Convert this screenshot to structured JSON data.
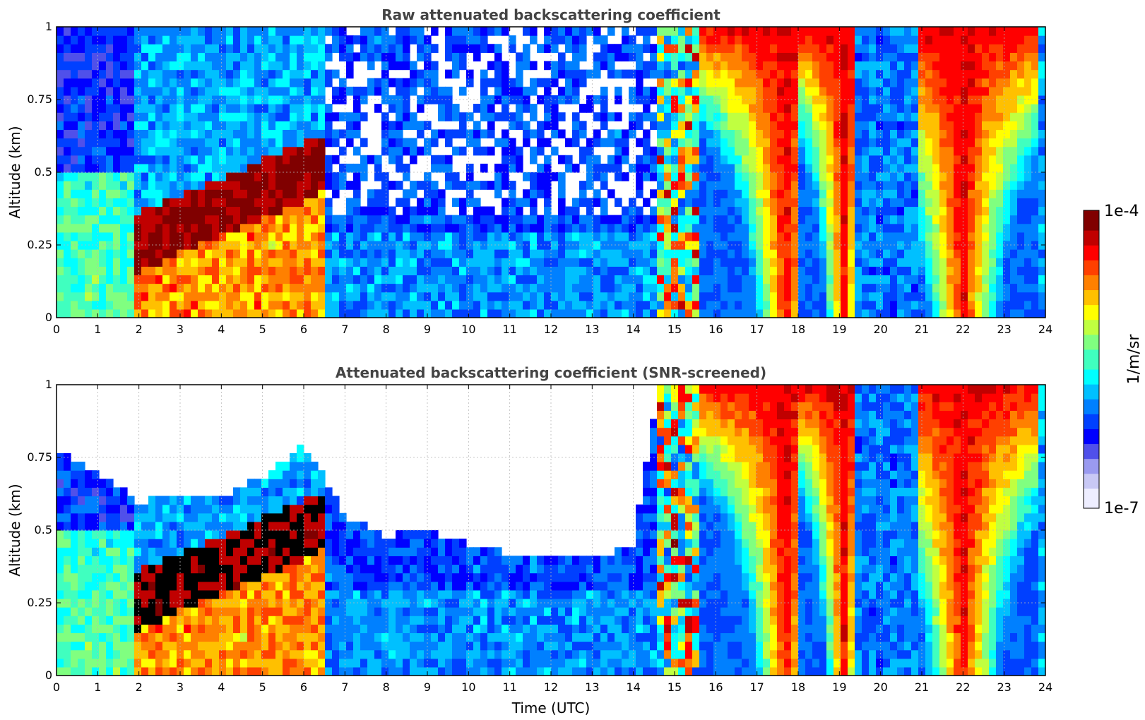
{
  "chart_data": [
    {
      "type": "heatmap",
      "title": "Raw attenuated backscattering coefficient",
      "xlabel": "",
      "ylabel": "Altitude (km)",
      "xlim": [
        0,
        24
      ],
      "ylim": [
        0,
        1
      ],
      "xticks": [
        "0",
        "1",
        "2",
        "3",
        "4",
        "5",
        "6",
        "7",
        "8",
        "9",
        "10",
        "11",
        "12",
        "13",
        "14",
        "15",
        "16",
        "17",
        "18",
        "19",
        "20",
        "21",
        "22",
        "23",
        "24"
      ],
      "yticks": [
        "0",
        "0.25",
        "0.5",
        "0.75",
        "1"
      ],
      "grid": true,
      "colormap": "jet",
      "color_scale": "log",
      "value_range": [
        1e-07,
        0.0001
      ],
      "features": [
        {
          "time": [
            0,
            1.8
          ],
          "top_km": 0.5,
          "intensity": 0.35
        },
        {
          "time": [
            1.8,
            6.6
          ],
          "top_km": 0.5,
          "intensity": 0.75
        },
        {
          "time": [
            15.6,
            18.0
          ],
          "top_km": 1.0,
          "intensity": 0.8
        },
        {
          "time": [
            18.0,
            19.4
          ],
          "top_km": 1.0,
          "intensity": 0.8
        },
        {
          "time": [
            21.0,
            23.8
          ],
          "top_km": 1.0,
          "intensity": 0.8
        }
      ]
    },
    {
      "type": "heatmap",
      "title": "Attenuated backscattering coefficient (SNR-screened)",
      "xlabel": "Time (UTC)",
      "ylabel": "Altitude (km)",
      "xlim": [
        0,
        24
      ],
      "ylim": [
        0,
        1
      ],
      "xticks": [
        "0",
        "1",
        "2",
        "3",
        "4",
        "5",
        "6",
        "7",
        "8",
        "9",
        "10",
        "11",
        "12",
        "13",
        "14",
        "15",
        "16",
        "17",
        "18",
        "19",
        "20",
        "21",
        "22",
        "23",
        "24"
      ],
      "yticks": [
        "0",
        "0.25",
        "0.5",
        "0.75",
        "1"
      ],
      "grid": true,
      "colormap": "jet",
      "color_scale": "log",
      "value_range": [
        1e-07,
        0.0001
      ],
      "screened_top_km": [
        [
          0,
          0.78
        ],
        [
          1,
          0.7
        ],
        [
          2,
          0.6
        ],
        [
          3,
          0.62
        ],
        [
          4,
          0.62
        ],
        [
          5,
          0.68
        ],
        [
          6,
          0.8
        ],
        [
          7,
          0.55
        ],
        [
          8,
          0.48
        ],
        [
          9,
          0.5
        ],
        [
          10,
          0.45
        ],
        [
          11,
          0.42
        ],
        [
          12,
          0.42
        ],
        [
          13,
          0.4
        ],
        [
          14,
          0.45
        ],
        [
          14.6,
          1.0
        ],
        [
          24,
          1.0
        ]
      ]
    }
  ],
  "colorbar": {
    "label": "1/m/sr",
    "max_label": "1e-4",
    "min_label": "1e-7",
    "colors": [
      "#eeeeff",
      "#c8c8f5",
      "#9a9af0",
      "#5050ea",
      "#0000ff",
      "#0040ff",
      "#0080ff",
      "#00c0ff",
      "#00ffff",
      "#40ffbf",
      "#80ff80",
      "#c0ff40",
      "#ffff00",
      "#ffc000",
      "#ff8000",
      "#ff4000",
      "#ff0000",
      "#c00000",
      "#800000"
    ]
  }
}
